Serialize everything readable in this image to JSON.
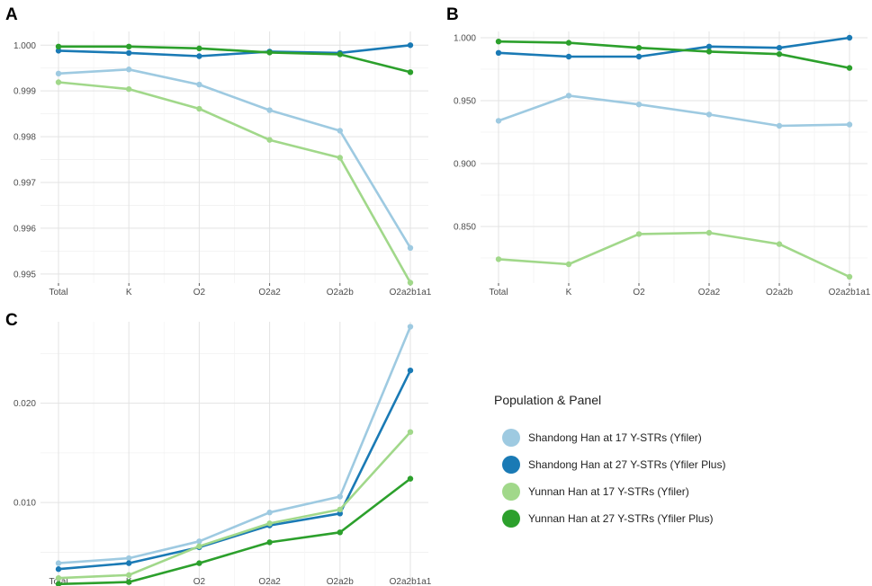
{
  "chart_data": [
    {
      "panel": "A",
      "type": "line",
      "categories": [
        "Total",
        "K",
        "O2",
        "O2a2",
        "O2a2b",
        "O2a2b1a1"
      ],
      "ylim": [
        0.9948,
        1.0003
      ],
      "y_ticks": [
        "1.000",
        "0.999",
        "0.998",
        "0.997",
        "0.996",
        "0.995"
      ],
      "series": [
        {
          "name": "Shandong Han at 17 Y-STRs (Yfiler)",
          "values": [
            0.99938,
            0.99947,
            0.99914,
            0.99858,
            0.99813,
            0.99557
          ]
        },
        {
          "name": "Shandong Han at 27 Y-STRs (Yfiler Plus)",
          "values": [
            0.99988,
            0.99983,
            0.99976,
            0.99986,
            0.99983,
            1.0
          ]
        },
        {
          "name": "Yunnan Han at 17 Y-STRs (Yfiler)",
          "values": [
            0.99919,
            0.99904,
            0.99861,
            0.99793,
            0.99754,
            0.99481
          ]
        },
        {
          "name": "Yunnan Han at 27 Y-STRs (Yfiler Plus)",
          "values": [
            0.99997,
            0.99997,
            0.99993,
            0.99984,
            0.9998,
            0.99941
          ]
        }
      ]
    },
    {
      "panel": "B",
      "type": "line",
      "categories": [
        "Total",
        "K",
        "O2",
        "O2a2",
        "O2a2b",
        "O2a2b1a1"
      ],
      "ylim": [
        0.805,
        1.005
      ],
      "y_ticks": [
        "1.000",
        "0.950",
        "0.900",
        "0.850"
      ],
      "series": [
        {
          "name": "Shandong Han at 17 Y-STRs (Yfiler)",
          "values": [
            0.934,
            0.954,
            0.947,
            0.939,
            0.93,
            0.931
          ]
        },
        {
          "name": "Shandong Han at 27 Y-STRs (Yfiler Plus)",
          "values": [
            0.988,
            0.985,
            0.985,
            0.993,
            0.992,
            1.0
          ]
        },
        {
          "name": "Yunnan Han at 17 Y-STRs (Yfiler)",
          "values": [
            0.824,
            0.82,
            0.844,
            0.845,
            0.836,
            0.81
          ]
        },
        {
          "name": "Yunnan Han at 27 Y-STRs (Yfiler Plus)",
          "values": [
            0.997,
            0.996,
            0.992,
            0.989,
            0.987,
            0.976
          ]
        }
      ]
    },
    {
      "panel": "C",
      "type": "line",
      "categories": [
        "Total",
        "K",
        "O2",
        "O2a2",
        "O2a2b",
        "O2a2b1a1"
      ],
      "ylim": [
        0.0016,
        0.0282
      ],
      "y_ticks": [
        "0.020",
        "0.010"
      ],
      "series": [
        {
          "name": "Shandong Han at 17 Y-STRs (Yfiler)",
          "values": [
            0.0039,
            0.0044,
            0.0061,
            0.009,
            0.0106,
            0.0277
          ]
        },
        {
          "name": "Shandong Han at 27 Y-STRs (Yfiler Plus)",
          "values": [
            0.0033,
            0.0039,
            0.0055,
            0.0077,
            0.0089,
            0.0233
          ]
        },
        {
          "name": "Yunnan Han at 17 Y-STRs (Yfiler)",
          "values": [
            0.0024,
            0.0027,
            0.0056,
            0.0079,
            0.0093,
            0.0171
          ]
        },
        {
          "name": "Yunnan Han at 27 Y-STRs (Yfiler Plus)",
          "values": [
            0.0018,
            0.002,
            0.0039,
            0.006,
            0.007,
            0.0124
          ]
        }
      ]
    }
  ],
  "legend": {
    "title": "Population & Panel",
    "items": [
      {
        "label": "Shandong Han at 17 Y-STRs (Yfiler)",
        "color": "#9ecae1"
      },
      {
        "label": "Shandong Han at 27 Y-STRs (Yfiler Plus)",
        "color": "#1a7ab5"
      },
      {
        "label": "Yunnan Han at 17 Y-STRs (Yfiler)",
        "color": "#a1d88a"
      },
      {
        "label": "Yunnan Han at 27 Y-STRs (Yfiler Plus)",
        "color": "#2ca02c"
      }
    ]
  },
  "colors": [
    "#9ecae1",
    "#1a7ab5",
    "#a1d88a",
    "#2ca02c"
  ]
}
